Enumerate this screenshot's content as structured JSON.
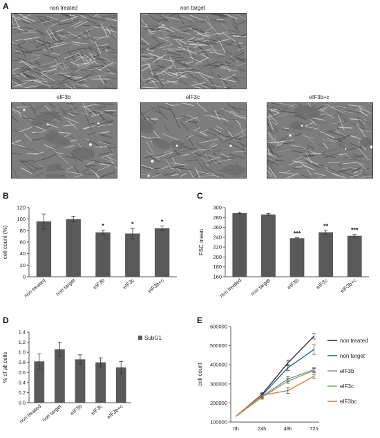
{
  "panelA": {
    "letter": "A",
    "images": [
      {
        "label": "non treated",
        "seed": 11,
        "tone": "dense"
      },
      {
        "label": "non target",
        "seed": 23,
        "tone": "dense"
      },
      {
        "label": "eIF3b",
        "seed": 37,
        "tone": "sparse"
      },
      {
        "label": "eIF3c",
        "seed": 51,
        "tone": "sparse"
      },
      {
        "label": "eIF3b+c",
        "seed": 67,
        "tone": "medium"
      }
    ]
  },
  "chartB": {
    "letter": "B",
    "chart_data": {
      "type": "bar",
      "categories": [
        "non treated",
        "non target",
        "eIF3b",
        "eIF3c",
        "eIF3b+c"
      ],
      "values": [
        96,
        100,
        77,
        75,
        84
      ],
      "errors": [
        13,
        5,
        4,
        9,
        4
      ],
      "significance": [
        "",
        "",
        "*",
        "*",
        "*"
      ],
      "ylabel": "cell count (%)",
      "ylim": [
        0,
        120
      ],
      "yticks": [
        "0",
        "20",
        "40",
        "60",
        "80",
        "100",
        "120"
      ],
      "bar_color": "#595959"
    }
  },
  "chartC": {
    "letter": "C",
    "chart_data": {
      "type": "bar",
      "categories": [
        "non treated",
        "non target",
        "eIF3b",
        "eIF3c",
        "eIF3b+c"
      ],
      "values": [
        289,
        286,
        238,
        250,
        243
      ],
      "errors": [
        2,
        2,
        1,
        4,
        3
      ],
      "significance": [
        "",
        "",
        "***",
        "**",
        "***"
      ],
      "ylabel": "FSC mean",
      "ylim": [
        160,
        300
      ],
      "yticks": [
        "160",
        "180",
        "200",
        "220",
        "240",
        "260",
        "280",
        "300"
      ],
      "bar_color": "#595959"
    }
  },
  "chartD": {
    "letter": "D",
    "chart_data": {
      "type": "bar",
      "categories": [
        "non treated",
        "non target",
        "eIF3b",
        "eIF3c",
        "eIF3b+c"
      ],
      "values": [
        0.82,
        1.06,
        0.86,
        0.8,
        0.7
      ],
      "errors": [
        0.15,
        0.14,
        0.09,
        0.09,
        0.12
      ],
      "ylabel": "% of all cells",
      "ylim": [
        0,
        1.4
      ],
      "yticks": [
        "0.0",
        "0.2",
        "0.4",
        "0.6",
        "0.8",
        "1.0",
        "1.2",
        "1.4"
      ],
      "legend": "SubG1",
      "bar_color": "#595959"
    }
  },
  "chartE": {
    "letter": "E",
    "chart_data": {
      "type": "line",
      "x": [
        "0h",
        "24h",
        "48h",
        "72h"
      ],
      "ylabel": "cell count",
      "ylim": [
        100000,
        600000
      ],
      "yticks": [
        "100000",
        "200000",
        "300000",
        "400000",
        "500000",
        "600000"
      ],
      "series": [
        {
          "name": "non treated",
          "color": "#333333",
          "values": [
            130000,
            245000,
            410000,
            550000
          ],
          "errors": [
            0,
            10000,
            15000,
            15000
          ]
        },
        {
          "name": "non target",
          "color": "#2f5f8a",
          "values": [
            130000,
            240000,
            385000,
            480000
          ],
          "errors": [
            0,
            10000,
            15000,
            25000
          ]
        },
        {
          "name": "eIF3b",
          "color": "#8f8fb0",
          "values": [
            130000,
            235000,
            325000,
            375000
          ],
          "errors": [
            0,
            10000,
            12000,
            10000
          ]
        },
        {
          "name": "eIF3c",
          "color": "#8aa86a",
          "values": [
            130000,
            230000,
            315000,
            370000
          ],
          "errors": [
            0,
            10000,
            12000,
            10000
          ]
        },
        {
          "name": "eIF3bc",
          "color": "#e07b39",
          "values": [
            130000,
            240000,
            265000,
            340000
          ],
          "errors": [
            0,
            10000,
            15000,
            10000
          ]
        }
      ]
    }
  }
}
